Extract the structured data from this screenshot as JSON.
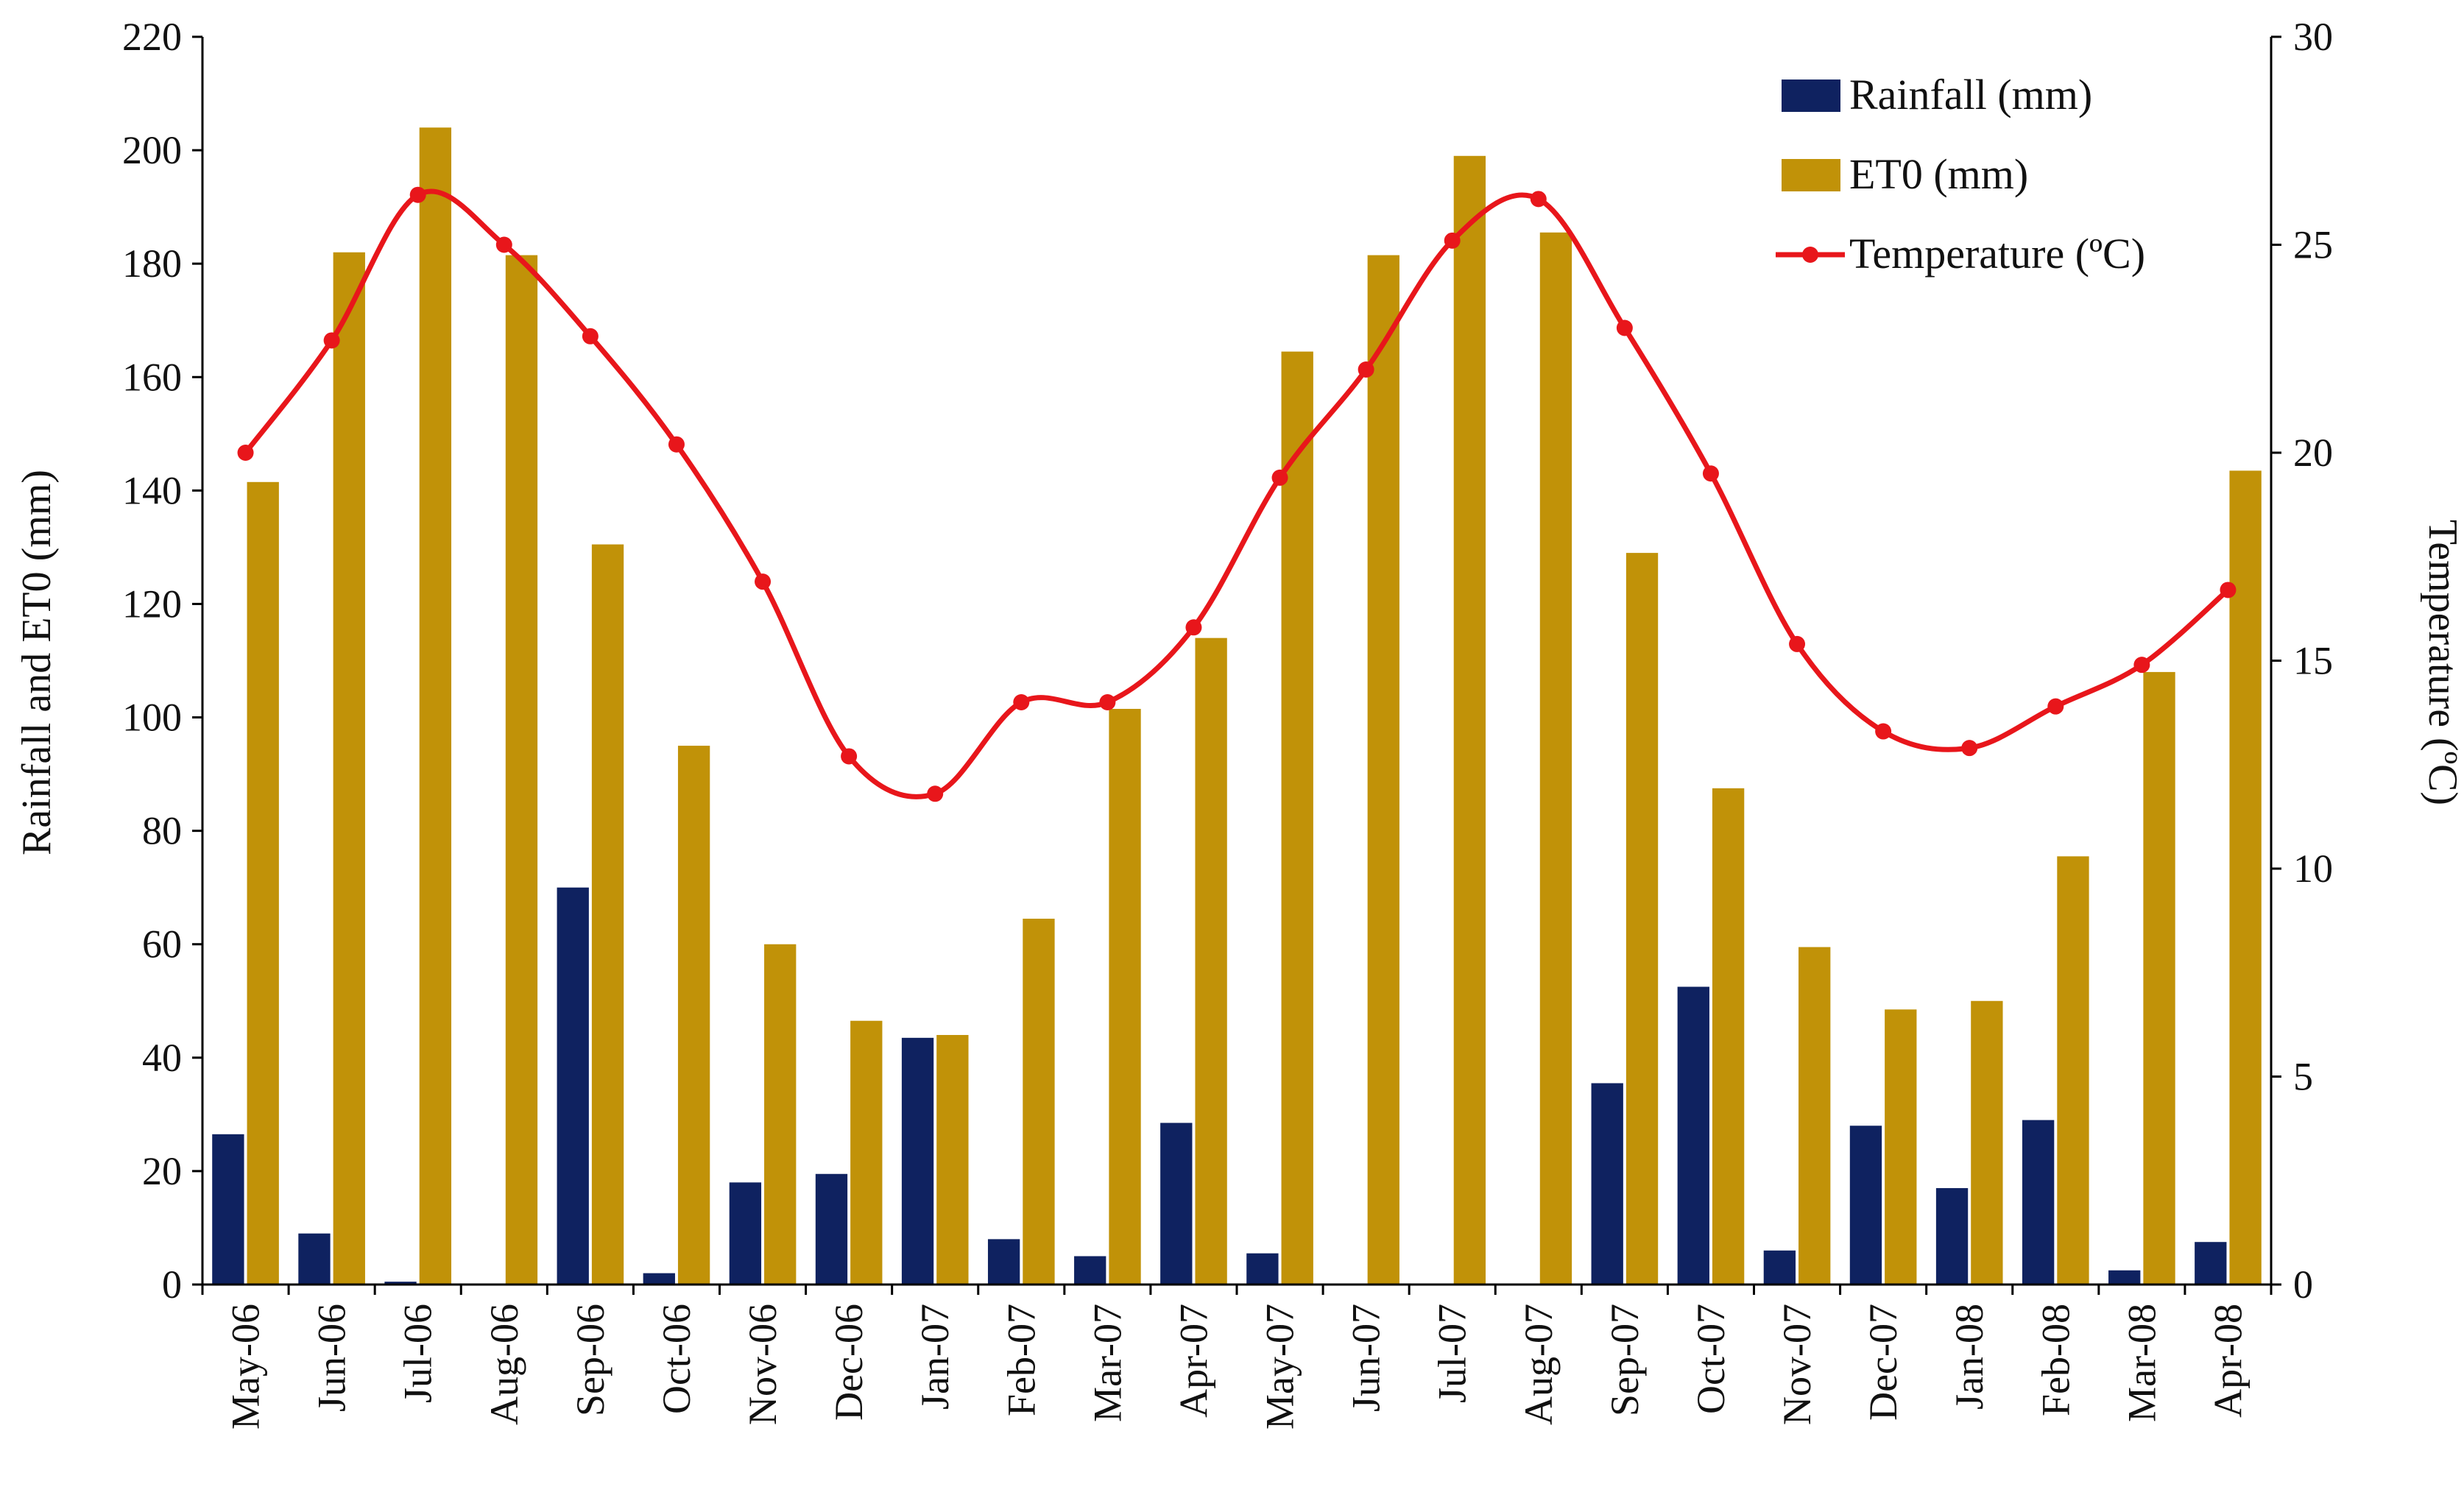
{
  "chart_data": {
    "type": "bar",
    "title": "",
    "categories": [
      "May-06",
      "Jun-06",
      "Jul-06",
      "Aug-06",
      "Sep-06",
      "Oct-06",
      "Nov-06",
      "Dec-06",
      "Jan-07",
      "Feb-07",
      "Mar-07",
      "Apr-07",
      "May-07",
      "Jun-07",
      "Jul-07",
      "Aug-07",
      "Sep-07",
      "Oct-07",
      "Nov-07",
      "Dec-07",
      "Jan-08",
      "Feb-08",
      "Mar-08",
      "Apr-08"
    ],
    "ylabel": "Rainfall and ET0 (mm)",
    "ylabel_right": "Temperature (ºC)",
    "ylim": [
      0,
      220
    ],
    "yticks": [
      "0",
      "20",
      "40",
      "60",
      "80",
      "100",
      "120",
      "140",
      "160",
      "180",
      "200",
      "220"
    ],
    "ylim_right": [
      0,
      30
    ],
    "yticks_right": [
      "0",
      "5",
      "10",
      "15",
      "20",
      "25",
      "30"
    ],
    "series": [
      {
        "name": "Rainfall (mm)",
        "type": "bar",
        "axis": "left",
        "color": "#0f2260",
        "values": [
          26.5,
          9,
          0.5,
          0,
          70,
          2,
          18,
          19.5,
          43.5,
          8,
          5,
          28.5,
          5.5,
          0,
          0,
          0,
          35.5,
          52.5,
          6,
          28,
          17,
          29,
          2.5,
          7.5
        ]
      },
      {
        "name": "ET0 (mm)",
        "type": "bar",
        "axis": "left",
        "color": "#c19208",
        "values": [
          141.5,
          182,
          204,
          181.5,
          130.5,
          95,
          60,
          46.5,
          44,
          64.5,
          101.5,
          114,
          164.5,
          181.5,
          199,
          185.5,
          129,
          87.5,
          59.5,
          48.5,
          50,
          75.5,
          108,
          143.5
        ]
      },
      {
        "name": "Temperature (ºC)",
        "type": "line",
        "axis": "right",
        "color": "#e8161b",
        "values": [
          20.0,
          22.7,
          26.2,
          25.0,
          22.8,
          20.2,
          16.9,
          12.7,
          11.8,
          14.0,
          14.0,
          15.8,
          19.4,
          22.0,
          25.1,
          26.1,
          23.0,
          19.5,
          15.4,
          13.3,
          12.9,
          13.9,
          14.9,
          16.7
        ]
      }
    ],
    "legend_position": "top-right",
    "grid": false
  }
}
